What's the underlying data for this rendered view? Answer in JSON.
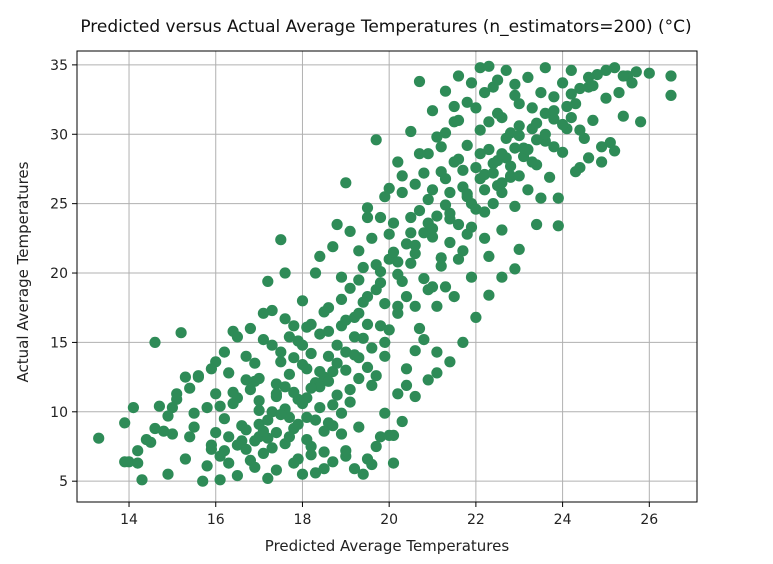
{
  "chart_data": {
    "type": "scatter",
    "title": "Predicted versus Actual Average Temperatures (n_estimators=200) (°C)",
    "xlabel": "Predicted Average Temperatures",
    "ylabel": "Actual Average Temperatures",
    "xlim": [
      12.8,
      27.1
    ],
    "ylim": [
      3.5,
      36.0
    ],
    "xticks": [
      14,
      16,
      18,
      20,
      22,
      24,
      26
    ],
    "yticks": [
      5,
      10,
      15,
      20,
      25,
      30,
      35
    ],
    "grid": true,
    "marker_color": "#2e8b57",
    "points": [
      [
        13.3,
        8.1
      ],
      [
        13.9,
        9.2
      ],
      [
        14.0,
        6.4
      ],
      [
        14.1,
        10.3
      ],
      [
        14.2,
        6.3
      ],
      [
        14.3,
        5.1
      ],
      [
        14.5,
        7.8
      ],
      [
        14.6,
        15.0
      ],
      [
        14.7,
        10.4
      ],
      [
        14.8,
        8.6
      ],
      [
        14.9,
        5.5
      ],
      [
        15.0,
        10.3
      ],
      [
        15.2,
        15.7
      ],
      [
        15.1,
        11.3
      ],
      [
        15.3,
        12.5
      ],
      [
        15.4,
        8.2
      ],
      [
        15.5,
        9.9
      ],
      [
        15.6,
        12.6
      ],
      [
        15.7,
        5.0
      ],
      [
        15.8,
        10.3
      ],
      [
        15.9,
        7.6
      ],
      [
        16.0,
        11.3
      ],
      [
        16.0,
        13.6
      ],
      [
        16.1,
        5.1
      ],
      [
        16.2,
        7.2
      ],
      [
        16.3,
        12.8
      ],
      [
        16.4,
        15.8
      ],
      [
        16.5,
        11.0
      ],
      [
        16.6,
        9.0
      ],
      [
        16.7,
        14.0
      ],
      [
        16.8,
        6.5
      ],
      [
        16.9,
        12.2
      ],
      [
        17.0,
        8.2
      ],
      [
        17.1,
        15.2
      ],
      [
        17.2,
        5.2
      ],
      [
        17.2,
        19.4
      ],
      [
        17.4,
        11.3
      ],
      [
        17.5,
        13.6
      ],
      [
        17.5,
        22.4
      ],
      [
        17.6,
        20.0
      ],
      [
        17.7,
        9.6
      ],
      [
        17.8,
        16.2
      ],
      [
        17.9,
        6.6
      ],
      [
        18.0,
        13.4
      ],
      [
        18.0,
        18.0
      ],
      [
        18.1,
        11.0
      ],
      [
        18.2,
        7.5
      ],
      [
        18.3,
        5.6
      ],
      [
        18.4,
        15.6
      ],
      [
        18.4,
        21.2
      ],
      [
        18.5,
        12.5
      ],
      [
        18.6,
        17.5
      ],
      [
        18.7,
        9.0
      ],
      [
        18.8,
        14.8
      ],
      [
        18.8,
        23.5
      ],
      [
        18.9,
        19.7
      ],
      [
        19.0,
        6.8
      ],
      [
        19.0,
        26.5
      ],
      [
        19.1,
        10.7
      ],
      [
        19.2,
        16.8
      ],
      [
        19.3,
        21.6
      ],
      [
        19.3,
        13.9
      ],
      [
        19.4,
        5.5
      ],
      [
        19.5,
        18.3
      ],
      [
        19.5,
        24.7
      ],
      [
        19.6,
        11.9
      ],
      [
        19.7,
        29.6
      ],
      [
        19.8,
        8.2
      ],
      [
        19.8,
        20.1
      ],
      [
        19.9,
        15.0
      ],
      [
        20.0,
        22.8
      ],
      [
        20.0,
        26.1
      ],
      [
        20.1,
        6.3
      ],
      [
        20.1,
        8.3
      ],
      [
        20.2,
        17.6
      ],
      [
        20.2,
        28.0
      ],
      [
        20.3,
        19.4
      ],
      [
        20.4,
        13.1
      ],
      [
        20.5,
        24.0
      ],
      [
        20.5,
        30.2
      ],
      [
        20.6,
        21.4
      ],
      [
        20.7,
        16.0
      ],
      [
        20.7,
        33.8
      ],
      [
        20.8,
        27.2
      ],
      [
        20.9,
        18.8
      ],
      [
        20.9,
        25.3
      ],
      [
        21.0,
        31.7
      ],
      [
        21.0,
        22.6
      ],
      [
        21.1,
        14.3
      ],
      [
        21.2,
        29.1
      ],
      [
        21.2,
        20.5
      ],
      [
        21.3,
        26.8
      ],
      [
        21.3,
        33.1
      ],
      [
        21.4,
        23.9
      ],
      [
        21.5,
        18.3
      ],
      [
        21.5,
        30.9
      ],
      [
        21.6,
        28.2
      ],
      [
        21.6,
        34.2
      ],
      [
        21.7,
        21.6
      ],
      [
        21.8,
        25.5
      ],
      [
        21.8,
        32.3
      ],
      [
        21.9,
        19.7
      ],
      [
        22.0,
        27.6
      ],
      [
        22.0,
        16.8
      ],
      [
        22.1,
        30.3
      ],
      [
        22.1,
        34.8
      ],
      [
        22.2,
        24.4
      ],
      [
        22.3,
        28.9
      ],
      [
        22.3,
        21.2
      ],
      [
        22.4,
        33.4
      ],
      [
        22.5,
        26.3
      ],
      [
        22.5,
        31.5
      ],
      [
        22.6,
        23.1
      ],
      [
        22.7,
        29.7
      ],
      [
        22.7,
        34.6
      ],
      [
        22.8,
        27.0
      ],
      [
        22.9,
        32.8
      ],
      [
        22.9,
        24.8
      ],
      [
        23.0,
        30.6
      ],
      [
        23.0,
        21.7
      ],
      [
        23.1,
        28.4
      ],
      [
        23.2,
        34.1
      ],
      [
        23.2,
        26.0
      ],
      [
        23.3,
        31.9
      ],
      [
        23.4,
        27.8
      ],
      [
        23.4,
        23.5
      ],
      [
        23.5,
        33.0
      ],
      [
        23.6,
        29.5
      ],
      [
        23.6,
        34.8
      ],
      [
        23.7,
        26.9
      ],
      [
        23.8,
        31.1
      ],
      [
        23.9,
        25.4
      ],
      [
        24.0,
        33.7
      ],
      [
        24.0,
        28.7
      ],
      [
        24.1,
        30.4
      ],
      [
        24.2,
        34.6
      ],
      [
        24.3,
        32.2
      ],
      [
        24.4,
        27.6
      ],
      [
        24.5,
        29.7
      ],
      [
        24.6,
        33.4
      ],
      [
        24.7,
        31.0
      ],
      [
        24.8,
        34.3
      ],
      [
        24.9,
        28.0
      ],
      [
        25.0,
        32.6
      ],
      [
        25.1,
        29.4
      ],
      [
        25.2,
        34.8
      ],
      [
        25.3,
        33.0
      ],
      [
        25.4,
        31.3
      ],
      [
        25.5,
        34.2
      ],
      [
        25.6,
        33.7
      ],
      [
        25.8,
        30.9
      ],
      [
        26.0,
        34.4
      ],
      [
        26.5,
        34.2
      ],
      [
        26.5,
        32.8
      ],
      [
        16.2,
        9.5
      ],
      [
        16.4,
        10.6
      ],
      [
        16.6,
        7.9
      ],
      [
        16.8,
        11.6
      ],
      [
        17.0,
        9.1
      ],
      [
        17.0,
        12.4
      ],
      [
        17.1,
        7.0
      ],
      [
        17.3,
        10.0
      ],
      [
        17.4,
        8.5
      ],
      [
        17.5,
        14.3
      ],
      [
        17.6,
        11.8
      ],
      [
        17.7,
        12.7
      ],
      [
        17.8,
        8.8
      ],
      [
        17.9,
        10.9
      ],
      [
        18.0,
        14.8
      ],
      [
        18.1,
        9.6
      ],
      [
        18.2,
        16.3
      ],
      [
        18.3,
        12.1
      ],
      [
        18.4,
        10.3
      ],
      [
        18.5,
        7.1
      ],
      [
        18.6,
        14.0
      ],
      [
        18.7,
        12.9
      ],
      [
        18.8,
        11.2
      ],
      [
        18.9,
        16.2
      ],
      [
        19.0,
        14.3
      ],
      [
        19.1,
        18.9
      ],
      [
        19.2,
        15.4
      ],
      [
        19.3,
        17.1
      ],
      [
        19.4,
        20.4
      ],
      [
        19.5,
        16.3
      ],
      [
        19.6,
        22.5
      ],
      [
        19.7,
        18.8
      ],
      [
        19.8,
        24.0
      ],
      [
        19.9,
        17.8
      ],
      [
        20.0,
        21.0
      ],
      [
        20.1,
        23.6
      ],
      [
        20.2,
        19.9
      ],
      [
        20.3,
        25.8
      ],
      [
        20.4,
        22.1
      ],
      [
        20.5,
        20.7
      ],
      [
        20.6,
        26.4
      ],
      [
        20.7,
        24.5
      ],
      [
        20.8,
        22.9
      ],
      [
        20.9,
        28.6
      ],
      [
        21.0,
        26.0
      ],
      [
        21.1,
        24.1
      ],
      [
        21.2,
        27.3
      ],
      [
        21.3,
        30.1
      ],
      [
        21.4,
        25.8
      ],
      [
        21.5,
        28.0
      ],
      [
        21.6,
        31.0
      ],
      [
        21.7,
        27.4
      ],
      [
        21.8,
        29.2
      ],
      [
        21.9,
        25.0
      ],
      [
        22.0,
        31.9
      ],
      [
        22.1,
        28.6
      ],
      [
        22.2,
        33.0
      ],
      [
        22.3,
        30.9
      ],
      [
        22.4,
        27.9
      ],
      [
        22.5,
        33.9
      ],
      [
        22.6,
        31.2
      ],
      [
        22.7,
        28.3
      ],
      [
        22.8,
        30.1
      ],
      [
        22.9,
        33.6
      ],
      [
        23.0,
        32.2
      ],
      [
        15.0,
        8.4
      ],
      [
        15.3,
        6.6
      ],
      [
        15.5,
        8.9
      ],
      [
        15.8,
        6.1
      ],
      [
        16.0,
        8.5
      ],
      [
        16.3,
        6.3
      ],
      [
        16.5,
        5.4
      ],
      [
        16.7,
        7.3
      ],
      [
        16.9,
        6.0
      ],
      [
        17.2,
        8.1
      ],
      [
        17.4,
        5.8
      ],
      [
        17.6,
        7.7
      ],
      [
        17.8,
        6.3
      ],
      [
        18.0,
        5.5
      ],
      [
        18.2,
        6.9
      ],
      [
        18.5,
        5.9
      ],
      [
        18.7,
        6.4
      ],
      [
        19.0,
        7.2
      ],
      [
        19.2,
        5.9
      ],
      [
        19.5,
        6.6
      ],
      [
        19.7,
        7.5
      ],
      [
        19.9,
        9.9
      ],
      [
        20.2,
        11.3
      ],
      [
        20.4,
        11.9
      ],
      [
        20.6,
        14.4
      ],
      [
        20.8,
        15.2
      ],
      [
        21.1,
        17.6
      ],
      [
        21.3,
        19.0
      ],
      [
        21.6,
        21.0
      ],
      [
        21.9,
        23.3
      ],
      [
        22.2,
        22.5
      ],
      [
        22.4,
        25.0
      ],
      [
        22.6,
        25.8
      ],
      [
        22.8,
        26.9
      ],
      [
        23.1,
        29.0
      ],
      [
        23.3,
        30.4
      ],
      [
        23.6,
        31.5
      ],
      [
        23.8,
        32.7
      ],
      [
        24.1,
        32.0
      ],
      [
        24.4,
        33.3
      ],
      [
        24.7,
        33.5
      ],
      [
        25.0,
        34.6
      ],
      [
        25.4,
        34.2
      ],
      [
        25.7,
        34.5
      ],
      [
        24.3,
        27.3
      ],
      [
        24.6,
        28.3
      ],
      [
        24.9,
        29.1
      ],
      [
        25.2,
        28.8
      ],
      [
        23.9,
        23.4
      ],
      [
        23.5,
        25.4
      ],
      [
        22.9,
        20.3
      ],
      [
        22.6,
        19.7
      ],
      [
        22.3,
        18.4
      ],
      [
        21.7,
        15.0
      ],
      [
        21.4,
        13.6
      ],
      [
        21.1,
        12.8
      ],
      [
        20.9,
        12.3
      ],
      [
        20.6,
        11.1
      ],
      [
        20.3,
        9.3
      ],
      [
        20.0,
        8.3
      ],
      [
        19.6,
        6.2
      ],
      [
        19.3,
        8.9
      ],
      [
        18.9,
        8.4
      ],
      [
        18.6,
        9.2
      ],
      [
        18.4,
        11.8
      ],
      [
        18.1,
        13.1
      ],
      [
        17.9,
        15.1
      ],
      [
        17.6,
        16.7
      ],
      [
        17.3,
        17.3
      ],
      [
        17.1,
        17.1
      ],
      [
        16.8,
        16.0
      ],
      [
        16.5,
        15.4
      ],
      [
        16.2,
        14.3
      ],
      [
        15.9,
        13.1
      ],
      [
        15.6,
        12.5
      ],
      [
        15.4,
        11.7
      ],
      [
        15.1,
        10.9
      ],
      [
        14.9,
        9.7
      ],
      [
        14.6,
        8.8
      ],
      [
        14.4,
        8.0
      ],
      [
        14.2,
        7.2
      ],
      [
        13.9,
        6.4
      ],
      [
        16.9,
        13.5
      ],
      [
        17.3,
        14.8
      ],
      [
        17.7,
        15.4
      ],
      [
        18.1,
        16.1
      ],
      [
        18.5,
        17.2
      ],
      [
        18.9,
        18.1
      ],
      [
        19.3,
        19.5
      ],
      [
        19.7,
        20.6
      ],
      [
        20.1,
        21.5
      ],
      [
        20.5,
        22.9
      ],
      [
        20.9,
        23.6
      ],
      [
        21.3,
        24.9
      ],
      [
        21.7,
        26.2
      ],
      [
        22.1,
        26.8
      ],
      [
        22.5,
        28.1
      ],
      [
        22.9,
        29.0
      ],
      [
        23.3,
        28.0
      ],
      [
        16.1,
        10.4
      ],
      [
        16.4,
        11.4
      ],
      [
        16.7,
        12.3
      ],
      [
        17.0,
        10.8
      ],
      [
        17.4,
        12.0
      ],
      [
        17.8,
        13.9
      ],
      [
        18.2,
        14.2
      ],
      [
        18.6,
        15.8
      ],
      [
        19.0,
        16.6
      ],
      [
        19.4,
        17.9
      ],
      [
        19.8,
        19.3
      ],
      [
        20.2,
        20.8
      ],
      [
        20.6,
        22.0
      ],
      [
        21.0,
        23.2
      ],
      [
        21.4,
        24.3
      ],
      [
        21.8,
        25.7
      ],
      [
        22.2,
        27.1
      ],
      [
        22.6,
        28.6
      ],
      [
        23.0,
        29.9
      ],
      [
        23.4,
        30.8
      ],
      [
        23.8,
        31.7
      ],
      [
        24.2,
        32.9
      ],
      [
        24.6,
        34.1
      ],
      [
        18.3,
        20.0
      ],
      [
        18.7,
        21.9
      ],
      [
        19.1,
        23.0
      ],
      [
        19.5,
        24.0
      ],
      [
        19.9,
        25.5
      ],
      [
        20.3,
        27.0
      ],
      [
        20.7,
        28.6
      ],
      [
        21.1,
        29.8
      ],
      [
        21.5,
        32.0
      ],
      [
        21.9,
        33.7
      ],
      [
        22.3,
        34.9
      ],
      [
        17.0,
        10.1
      ],
      [
        17.2,
        9.4
      ],
      [
        17.4,
        11.1
      ],
      [
        17.6,
        10.2
      ],
      [
        17.8,
        11.4
      ],
      [
        18.0,
        10.6
      ],
      [
        18.2,
        11.7
      ],
      [
        18.4,
        12.9
      ],
      [
        18.6,
        12.2
      ],
      [
        18.8,
        13.5
      ],
      [
        19.0,
        13.0
      ],
      [
        19.2,
        14.1
      ],
      [
        19.4,
        15.3
      ],
      [
        19.6,
        14.6
      ],
      [
        19.8,
        16.2
      ],
      [
        20.0,
        15.9
      ],
      [
        20.2,
        17.1
      ],
      [
        20.4,
        18.3
      ],
      [
        20.6,
        17.6
      ],
      [
        20.8,
        19.6
      ],
      [
        21.0,
        19.0
      ],
      [
        21.2,
        21.1
      ],
      [
        21.4,
        22.2
      ],
      [
        21.6,
        23.5
      ],
      [
        21.8,
        22.8
      ],
      [
        22.0,
        24.6
      ],
      [
        22.2,
        26.0
      ],
      [
        22.4,
        27.2
      ],
      [
        22.6,
        26.5
      ],
      [
        22.8,
        27.7
      ],
      [
        23.0,
        27.0
      ],
      [
        23.2,
        28.9
      ],
      [
        23.4,
        29.6
      ],
      [
        23.6,
        30.0
      ],
      [
        23.8,
        29.1
      ],
      [
        24.0,
        30.7
      ],
      [
        24.2,
        31.2
      ],
      [
        24.4,
        30.3
      ],
      [
        15.9,
        7.3
      ],
      [
        16.1,
        6.8
      ],
      [
        16.3,
        8.2
      ],
      [
        16.5,
        7.6
      ],
      [
        16.7,
        8.7
      ],
      [
        16.9,
        7.9
      ],
      [
        17.1,
        8.6
      ],
      [
        17.3,
        7.4
      ],
      [
        17.5,
        9.8
      ],
      [
        17.7,
        8.2
      ],
      [
        17.9,
        9.1
      ],
      [
        18.1,
        8.0
      ],
      [
        18.3,
        9.4
      ],
      [
        18.5,
        8.6
      ],
      [
        18.7,
        10.5
      ],
      [
        18.9,
        9.9
      ],
      [
        19.1,
        11.6
      ],
      [
        19.3,
        12.4
      ],
      [
        19.5,
        13.2
      ],
      [
        19.7,
        12.6
      ],
      [
        19.9,
        14.0
      ]
    ]
  }
}
